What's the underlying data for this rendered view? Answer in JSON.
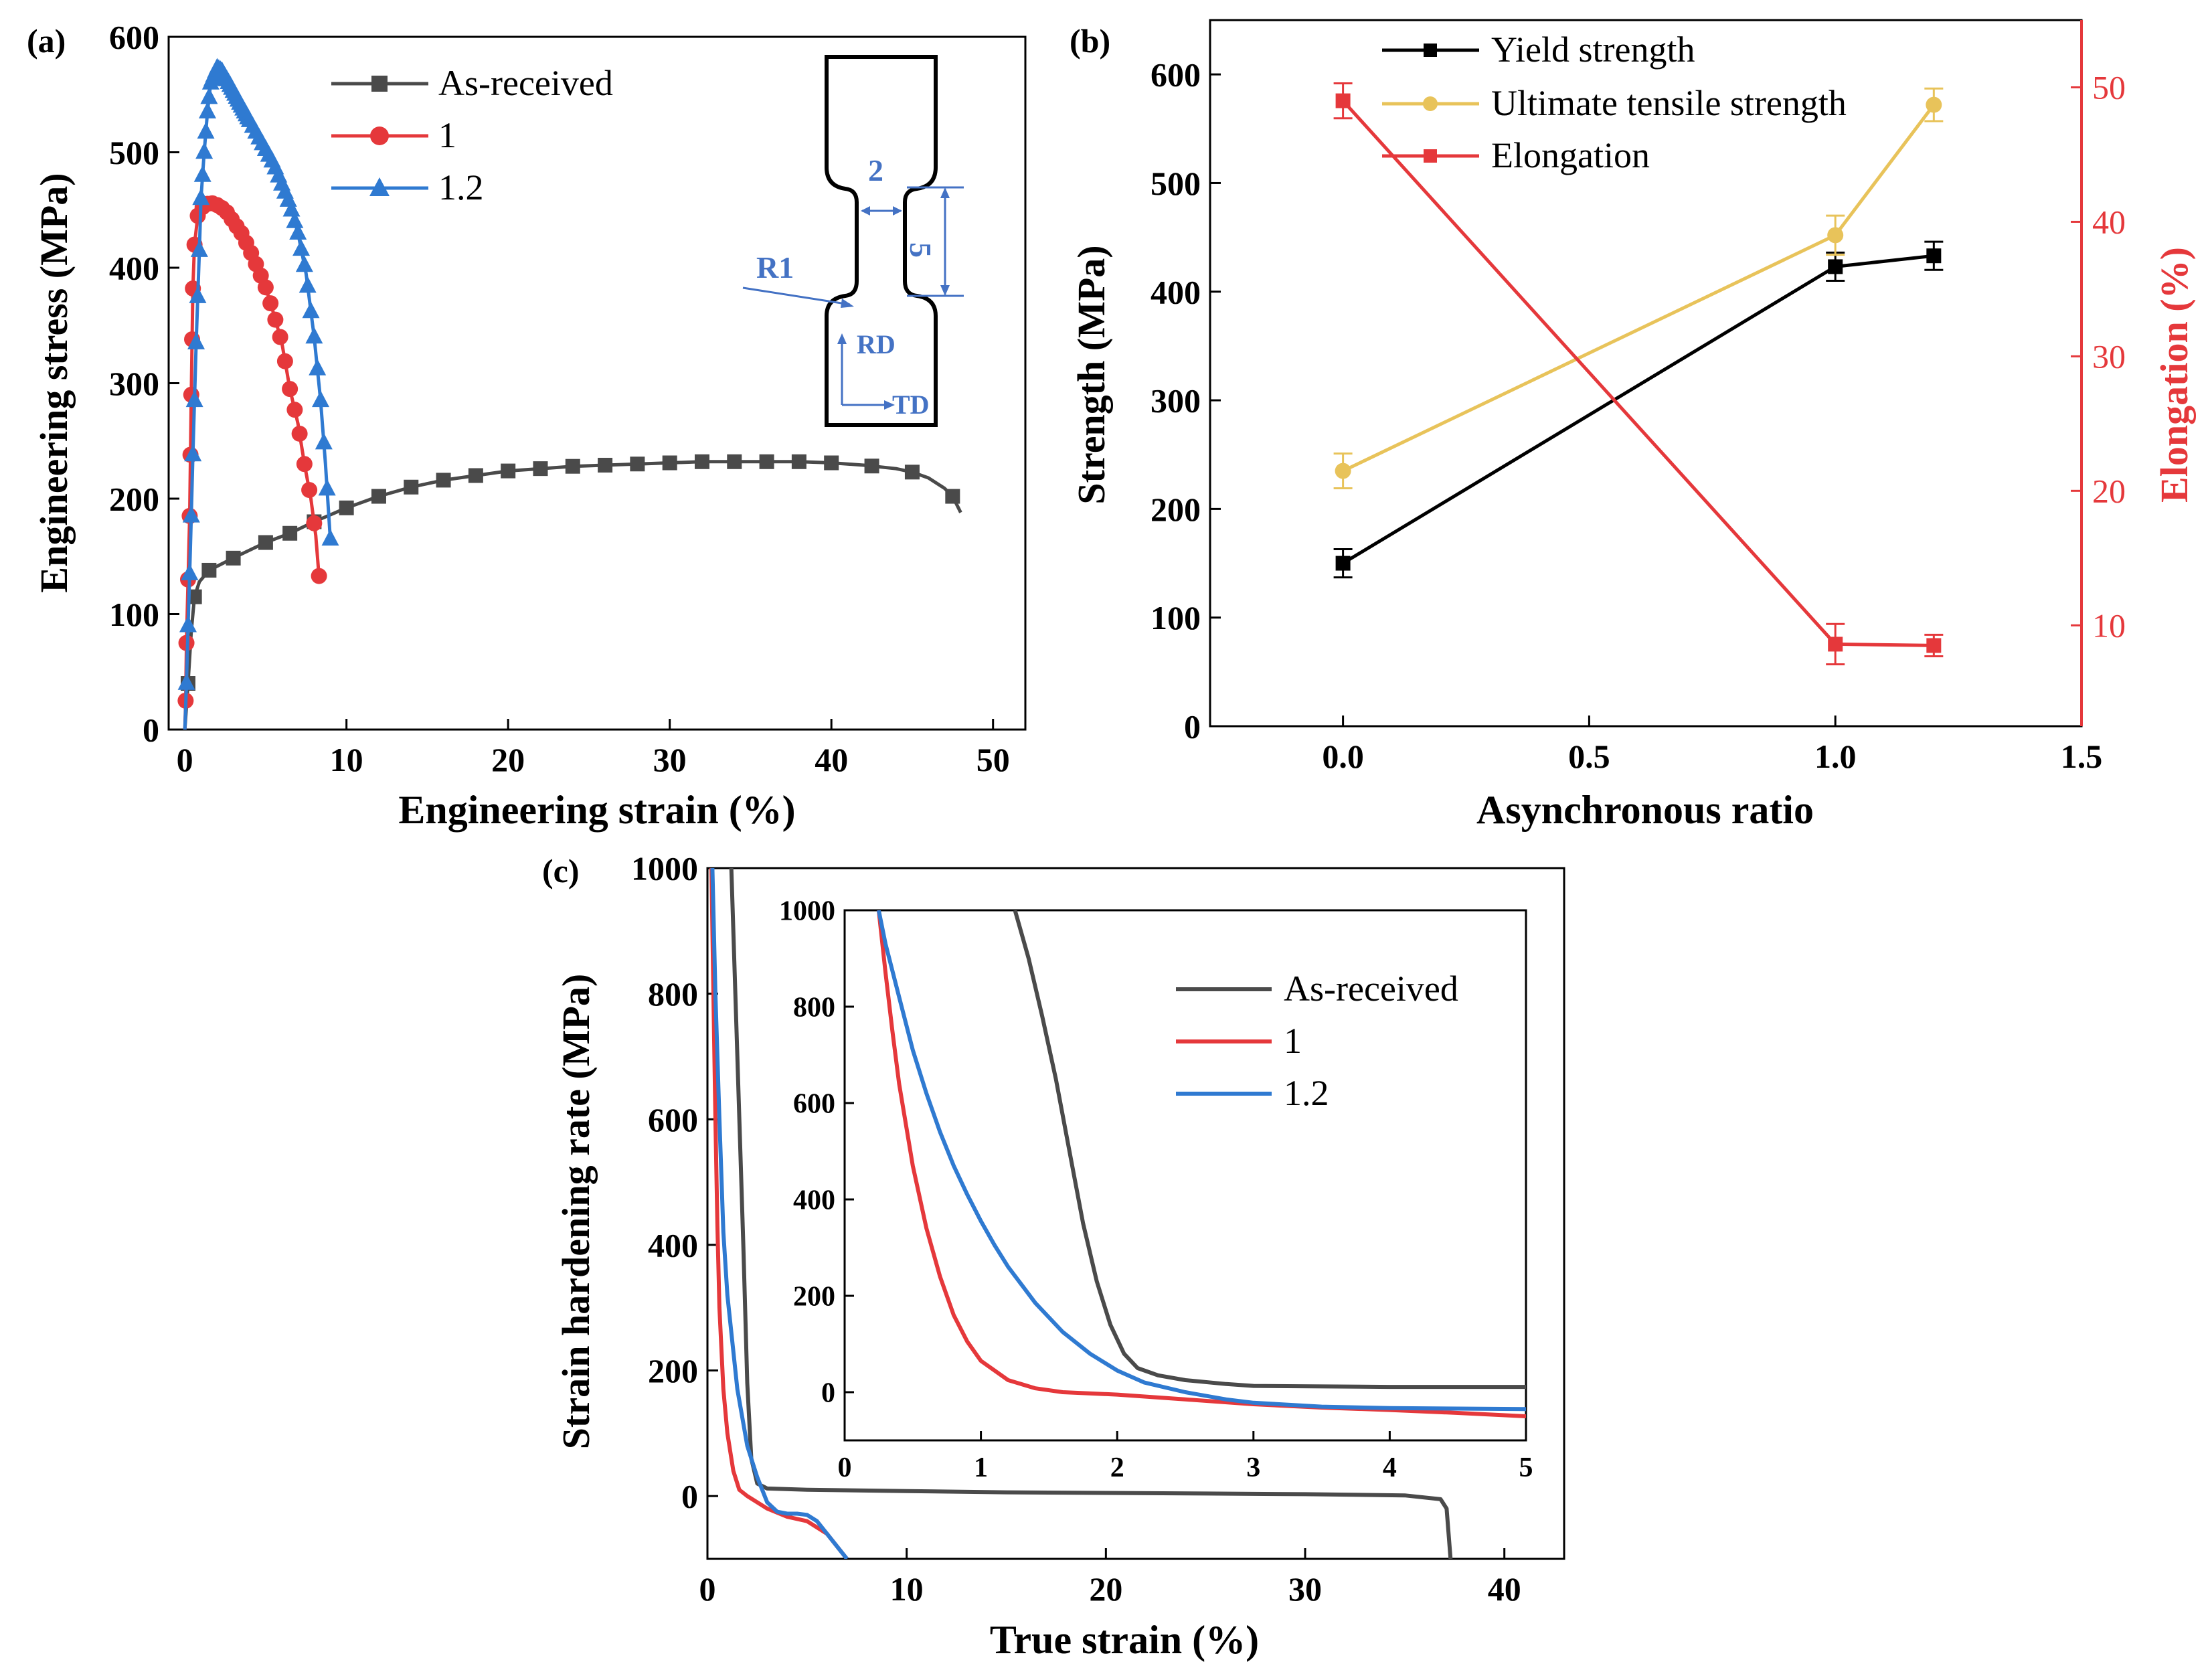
{
  "chart_data": [
    {
      "panel": "(a)",
      "type": "line",
      "xlabel": "Engineering strain (%)",
      "ylabel": "Engineering stress (MPa)",
      "xlim": [
        -1,
        52
      ],
      "ylim": [
        0,
        600
      ],
      "xticks": [
        0,
        10,
        20,
        30,
        40,
        50
      ],
      "yticks": [
        0,
        100,
        200,
        300,
        400,
        500,
        600
      ],
      "legend_position": "top-left",
      "series": [
        {
          "name": "As-received",
          "color": "#4a4a4a",
          "marker": "square",
          "points": [
            [
              0,
              0
            ],
            [
              0.2,
              40
            ],
            [
              0.4,
              85
            ],
            [
              0.6,
              115
            ],
            [
              0.9,
              128
            ],
            [
              1.5,
              138
            ],
            [
              2.5,
              145
            ],
            [
              3.5,
              152
            ],
            [
              5,
              162
            ],
            [
              6.5,
              170
            ],
            [
              8,
              180
            ],
            [
              10,
              192
            ],
            [
              12,
              202
            ],
            [
              14,
              210
            ],
            [
              16,
              216
            ],
            [
              18,
              220
            ],
            [
              20,
              224
            ],
            [
              22,
              226
            ],
            [
              24,
              228
            ],
            [
              26,
              229
            ],
            [
              28,
              230
            ],
            [
              30,
              231
            ],
            [
              32,
              232
            ],
            [
              34,
              232
            ],
            [
              36,
              232
            ],
            [
              38,
              232
            ],
            [
              40,
              231
            ],
            [
              42,
              229
            ],
            [
              44,
              226
            ],
            [
              45,
              223
            ],
            [
              46,
              218
            ],
            [
              47,
              209
            ],
            [
              47.5,
              202
            ],
            [
              48,
              188
            ]
          ],
          "markers_at_x": [
            0.2,
            0.6,
            1.5,
            3,
            5,
            6.5,
            8,
            10,
            12,
            14,
            16,
            18,
            20,
            22,
            24,
            26,
            28,
            30,
            32,
            34,
            36,
            38,
            40,
            42.5,
            45,
            47.5
          ]
        },
        {
          "name": "1",
          "color": "#e5383b",
          "marker": "circle",
          "points": [
            [
              0,
              0
            ],
            [
              0.05,
              25
            ],
            [
              0.1,
              75
            ],
            [
              0.2,
              130
            ],
            [
              0.3,
              185
            ],
            [
              0.35,
              238
            ],
            [
              0.4,
              290
            ],
            [
              0.45,
              338
            ],
            [
              0.5,
              382
            ],
            [
              0.6,
              420
            ],
            [
              0.8,
              445
            ],
            [
              1.2,
              455
            ],
            [
              1.8,
              456
            ],
            [
              2.5,
              450
            ],
            [
              3,
              440
            ],
            [
              3.5,
              430
            ],
            [
              4,
              416
            ],
            [
              4.5,
              400
            ],
            [
              5,
              383
            ],
            [
              5.5,
              360
            ],
            [
              6,
              335
            ],
            [
              6.5,
              295
            ],
            [
              7,
              265
            ],
            [
              7.4,
              230
            ],
            [
              7.8,
              200
            ],
            [
              8.1,
              168
            ],
            [
              8.3,
              133
            ]
          ],
          "markers_at_x": [
            0.05,
            0.1,
            0.2,
            0.3,
            0.35,
            0.4,
            0.45,
            0.5,
            0.6,
            0.8,
            1.1,
            1.4,
            1.7,
            2,
            2.3,
            2.6,
            2.9,
            3.2,
            3.5,
            3.8,
            4.1,
            4.4,
            4.7,
            5,
            5.3,
            5.6,
            5.9,
            6.2,
            6.5,
            6.8,
            7.1,
            7.4,
            7.7,
            8,
            8.3
          ]
        },
        {
          "name": "1.2",
          "color": "#2f7ad1",
          "marker": "triangle",
          "points": [
            [
              0,
              0
            ],
            [
              0.1,
              40
            ],
            [
              0.2,
              90
            ],
            [
              0.3,
              135
            ],
            [
              0.4,
              185
            ],
            [
              0.5,
              238
            ],
            [
              0.6,
              285
            ],
            [
              0.7,
              335
            ],
            [
              0.8,
              375
            ],
            [
              0.9,
              415
            ],
            [
              1,
              460
            ],
            [
              1.2,
              500
            ],
            [
              1.4,
              535
            ],
            [
              1.6,
              560
            ],
            [
              2,
              573
            ],
            [
              2.3,
              570
            ],
            [
              2.8,
              558
            ],
            [
              3.5,
              540
            ],
            [
              4.5,
              515
            ],
            [
              5.5,
              490
            ],
            [
              6.5,
              455
            ],
            [
              7,
              430
            ],
            [
              7.5,
              395
            ],
            [
              8,
              340
            ],
            [
              8.4,
              285
            ],
            [
              8.7,
              230
            ],
            [
              9,
              165
            ]
          ],
          "markers_at_x": [
            0.1,
            0.2,
            0.3,
            0.4,
            0.5,
            0.6,
            0.7,
            0.8,
            0.9,
            1,
            1.1,
            1.2,
            1.3,
            1.4,
            1.5,
            1.6,
            1.7,
            1.8,
            1.9,
            2,
            2.1,
            2.2,
            2.3,
            2.4,
            2.5,
            2.6,
            2.7,
            2.8,
            2.9,
            3,
            3.1,
            3.2,
            3.3,
            3.4,
            3.5,
            3.6,
            3.7,
            3.8,
            3.9,
            4,
            4.2,
            4.4,
            4.6,
            4.8,
            5,
            5.2,
            5.4,
            5.6,
            5.8,
            6,
            6.2,
            6.4,
            6.6,
            6.8,
            7,
            7.2,
            7.4,
            7.6,
            7.8,
            8,
            8.2,
            8.4,
            8.6,
            8.8,
            9
          ]
        }
      ],
      "inset_specimen": {
        "labels": [
          "2",
          "5",
          "R1",
          "RD",
          "TD"
        ],
        "label_color": "#4472c4"
      }
    },
    {
      "panel": "(b)",
      "type": "line",
      "xlabel": "Asynchronous ratio",
      "ylabel": "Strength (MPa)",
      "ylabel_right": "Elongation (%)",
      "xlim": [
        -0.27,
        1.5
      ],
      "ylim": [
        0,
        650
      ],
      "ylim_right": [
        2.5,
        55
      ],
      "xticks": [
        0.0,
        0.5,
        1.0,
        1.5
      ],
      "xtick_labels": [
        "0.0",
        "0.5",
        "1.0",
        "1.5"
      ],
      "yticks": [
        0,
        100,
        200,
        300,
        400,
        500,
        600
      ],
      "yticks_right": [
        10,
        20,
        30,
        40,
        50
      ],
      "legend_position": "top-left",
      "series": [
        {
          "name": "Yield strength",
          "color": "#000000",
          "axis": "left",
          "x": [
            0,
            1,
            1.2
          ],
          "values": [
            150,
            423,
            433
          ],
          "errors": [
            13,
            13,
            13
          ]
        },
        {
          "name": "Ultimate tensile strength",
          "color": "#e8c35a",
          "axis": "left",
          "x": [
            0,
            1,
            1.2
          ],
          "values": [
            235,
            452,
            572
          ],
          "errors": [
            16,
            18,
            15
          ]
        },
        {
          "name": "Elongation",
          "color": "#e5383b",
          "axis": "right",
          "x": [
            0,
            1,
            1.2
          ],
          "values": [
            49,
            8.6,
            8.5
          ],
          "errors": [
            1.3,
            1.5,
            0.8
          ]
        }
      ]
    },
    {
      "panel": "(c)",
      "type": "line",
      "xlabel": "True strain (%)",
      "ylabel": "Strain hardening rate (MPa)",
      "xlim": [
        0,
        43
      ],
      "ylim": [
        -100,
        1000
      ],
      "xticks": [
        0,
        10,
        20,
        30,
        40
      ],
      "yticks": [
        0,
        200,
        400,
        600,
        800,
        1000
      ],
      "series": [
        {
          "name": "As-received",
          "color": "#4a4a4a",
          "points": [
            [
              1.2,
              1000
            ],
            [
              1.5,
              700
            ],
            [
              1.8,
              400
            ],
            [
              2,
              180
            ],
            [
              2.2,
              60
            ],
            [
              2.5,
              20
            ],
            [
              3,
              12
            ],
            [
              5,
              10
            ],
            [
              10,
              8
            ],
            [
              15,
              6
            ],
            [
              20,
              5
            ],
            [
              25,
              4
            ],
            [
              30,
              3
            ],
            [
              35,
              1
            ],
            [
              36.8,
              -5
            ],
            [
              37.1,
              -20
            ],
            [
              37.3,
              -100
            ]
          ]
        },
        {
          "name": "1",
          "color": "#e5383b",
          "points": [
            [
              0.2,
              1000
            ],
            [
              0.3,
              800
            ],
            [
              0.4,
              600
            ],
            [
              0.5,
              430
            ],
            [
              0.6,
              300
            ],
            [
              0.8,
              170
            ],
            [
              1,
              100
            ],
            [
              1.3,
              40
            ],
            [
              1.6,
              10
            ],
            [
              2,
              0
            ],
            [
              3,
              -20
            ],
            [
              4,
              -33
            ],
            [
              5,
              -40
            ],
            [
              6,
              -60
            ],
            [
              7,
              -100
            ]
          ]
        },
        {
          "name": "1.2",
          "color": "#2f7ad1",
          "points": [
            [
              0.25,
              1000
            ],
            [
              0.4,
              800
            ],
            [
              0.6,
              600
            ],
            [
              0.8,
              420
            ],
            [
              1,
              320
            ],
            [
              1.5,
              170
            ],
            [
              2,
              80
            ],
            [
              2.5,
              30
            ],
            [
              3,
              -10
            ],
            [
              3.5,
              -25
            ],
            [
              4,
              -28
            ],
            [
              4.5,
              -28
            ],
            [
              5,
              -30
            ],
            [
              5.5,
              -40
            ],
            [
              6,
              -60
            ],
            [
              7,
              -100
            ]
          ]
        }
      ],
      "inset": {
        "xlim": [
          0,
          5
        ],
        "ylim": [
          -100,
          1000
        ],
        "xticks": [
          0,
          1,
          2,
          3,
          4,
          5
        ],
        "yticks": [
          0,
          200,
          400,
          600,
          800,
          1000
        ],
        "legend_position": "top-right",
        "series": [
          {
            "name": "As-received",
            "color": "#4a4a4a",
            "points": [
              [
                1.25,
                1000
              ],
              [
                1.35,
                900
              ],
              [
                1.45,
                780
              ],
              [
                1.55,
                650
              ],
              [
                1.65,
                500
              ],
              [
                1.75,
                350
              ],
              [
                1.85,
                230
              ],
              [
                1.95,
                140
              ],
              [
                2.05,
                80
              ],
              [
                2.15,
                50
              ],
              [
                2.3,
                35
              ],
              [
                2.5,
                25
              ],
              [
                2.8,
                17
              ],
              [
                3,
                13
              ],
              [
                4,
                11
              ],
              [
                5,
                11
              ]
            ]
          },
          {
            "name": "1",
            "color": "#e5383b",
            "points": [
              [
                0.25,
                1000
              ],
              [
                0.3,
                870
              ],
              [
                0.35,
                750
              ],
              [
                0.4,
                640
              ],
              [
                0.5,
                470
              ],
              [
                0.6,
                340
              ],
              [
                0.7,
                240
              ],
              [
                0.8,
                160
              ],
              [
                0.9,
                105
              ],
              [
                1,
                65
              ],
              [
                1.2,
                25
              ],
              [
                1.4,
                8
              ],
              [
                1.6,
                0
              ],
              [
                2,
                -5
              ],
              [
                2.5,
                -15
              ],
              [
                3,
                -25
              ],
              [
                3.5,
                -32
              ],
              [
                4,
                -37
              ],
              [
                4.5,
                -43
              ],
              [
                5,
                -50
              ]
            ]
          },
          {
            "name": "1.2",
            "color": "#2f7ad1",
            "points": [
              [
                0.25,
                1000
              ],
              [
                0.3,
                930
              ],
              [
                0.4,
                820
              ],
              [
                0.5,
                710
              ],
              [
                0.6,
                620
              ],
              [
                0.7,
                540
              ],
              [
                0.8,
                470
              ],
              [
                0.9,
                410
              ],
              [
                1,
                355
              ],
              [
                1.1,
                305
              ],
              [
                1.2,
                260
              ],
              [
                1.4,
                185
              ],
              [
                1.6,
                125
              ],
              [
                1.8,
                80
              ],
              [
                2,
                45
              ],
              [
                2.2,
                20
              ],
              [
                2.5,
                0
              ],
              [
                2.8,
                -15
              ],
              [
                3,
                -22
              ],
              [
                3.5,
                -30
              ],
              [
                4,
                -33
              ],
              [
                4.5,
                -34
              ],
              [
                5,
                -35
              ]
            ]
          }
        ]
      }
    }
  ]
}
